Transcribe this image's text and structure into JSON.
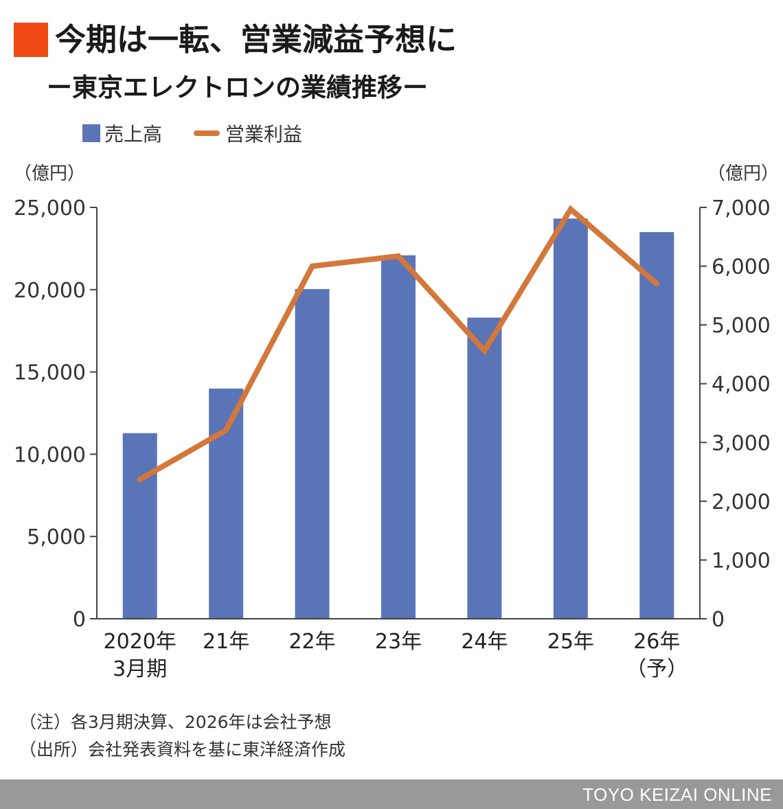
{
  "title": "今期は一転、営業減益予想に",
  "subtitle": "ー東京エレクトロンの業績推移ー",
  "colors": {
    "title_marker": "#f04a14",
    "bar": "#5a74b8",
    "line": "#d4773a",
    "axis": "#444444",
    "footer_bg": "#999999"
  },
  "legend": {
    "bar_label": "売上高",
    "line_label": "営業利益"
  },
  "units": {
    "left": "（億円）",
    "right": "（億円）"
  },
  "notes": [
    "（注）各3月期決算、2026年は会社予想",
    "（出所）会社発表資料を基に東洋経済作成"
  ],
  "footer": {
    "brand": "TOYO KEIZAI ONLINE"
  },
  "chart_data": {
    "type": "bar+line",
    "title": "今期は一転、営業減益予想に",
    "subtitle": "ー東京エレクトロンの業績推移ー",
    "categories": [
      "2020年\n3月期",
      "21年",
      "22年",
      "23年",
      "24年",
      "25年",
      "26年\n（予）"
    ],
    "series": [
      {
        "name": "売上高",
        "type": "bar",
        "axis": "left",
        "values": [
          11280,
          13990,
          20040,
          22090,
          18300,
          24320,
          23500
        ]
      },
      {
        "name": "営業利益",
        "type": "line",
        "axis": "right",
        "values": [
          2370,
          3210,
          6000,
          6170,
          4560,
          6970,
          5700
        ]
      }
    ],
    "ylim_left": [
      0,
      25000
    ],
    "ylim_right": [
      0,
      7000
    ],
    "yticks_left": [
      "0",
      "5,000",
      "10,000",
      "15,000",
      "20,000",
      "25,000"
    ],
    "yticks_right": [
      "0",
      "1,000",
      "2,000",
      "3,000",
      "4,000",
      "5,000",
      "6,000",
      "7,000"
    ],
    "ylabel_left": "（億円）",
    "ylabel_right": "（億円）",
    "legend_position": "top-left",
    "grid": false
  }
}
